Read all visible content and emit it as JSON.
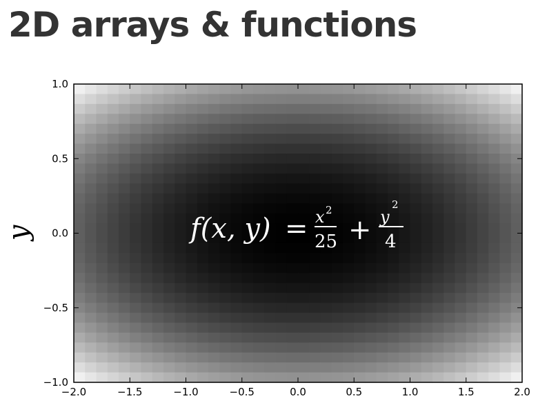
{
  "slide": {
    "title": "2D arrays & functions"
  },
  "chart_data": {
    "type": "heatmap",
    "title": "",
    "xlabel": "",
    "ylabel": "y",
    "xlim": [
      -2.0,
      2.0
    ],
    "ylim": [
      -1.0,
      1.0
    ],
    "x_ticks": [
      "−2.0",
      "−1.5",
      "−1.0",
      "−0.5",
      "0.0",
      "0.5",
      "1.0",
      "1.5",
      "2.0"
    ],
    "y_ticks": [
      "1.0",
      "0.5",
      "0.0",
      "−0.5",
      "−1.0"
    ],
    "function": "x^2/25 + y^2/4",
    "colormap": "gray",
    "grid": false,
    "annotation": {
      "lhs": "f(x, y)",
      "equals": "=",
      "x_numerator": "x",
      "exponent": "2",
      "x_denominator": "25",
      "plus": "+",
      "y_numerator": "y",
      "y_denominator": "4"
    }
  }
}
